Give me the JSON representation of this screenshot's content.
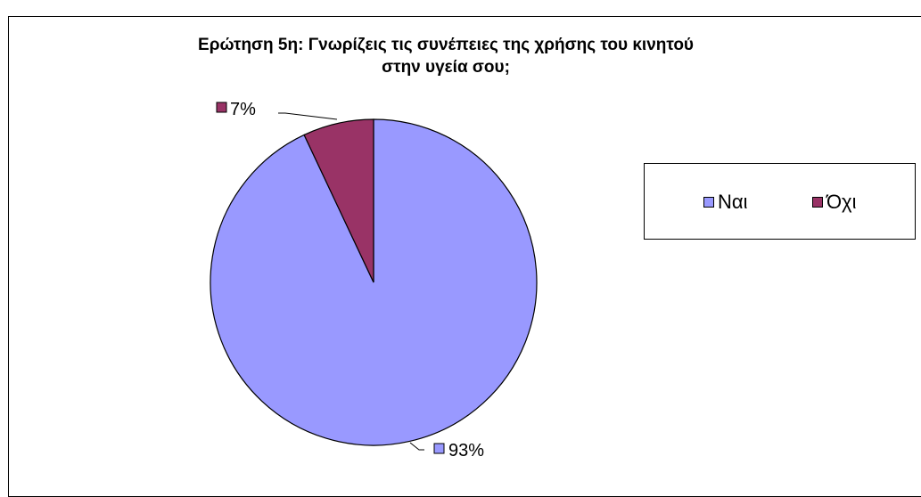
{
  "chart_data": {
    "type": "pie",
    "title": "Ερώτηση 5η: Γνωρίζεις τις συνέπειες της χρήσης του κινητού\nστην υγεία σου;",
    "slices": [
      {
        "label": "Ναι",
        "value": 93,
        "display": "93%",
        "color": "#9999ff"
      },
      {
        "label": "Όχι",
        "value": 7,
        "display": "7%",
        "color": "#993366"
      }
    ],
    "legend_placement": "right"
  }
}
